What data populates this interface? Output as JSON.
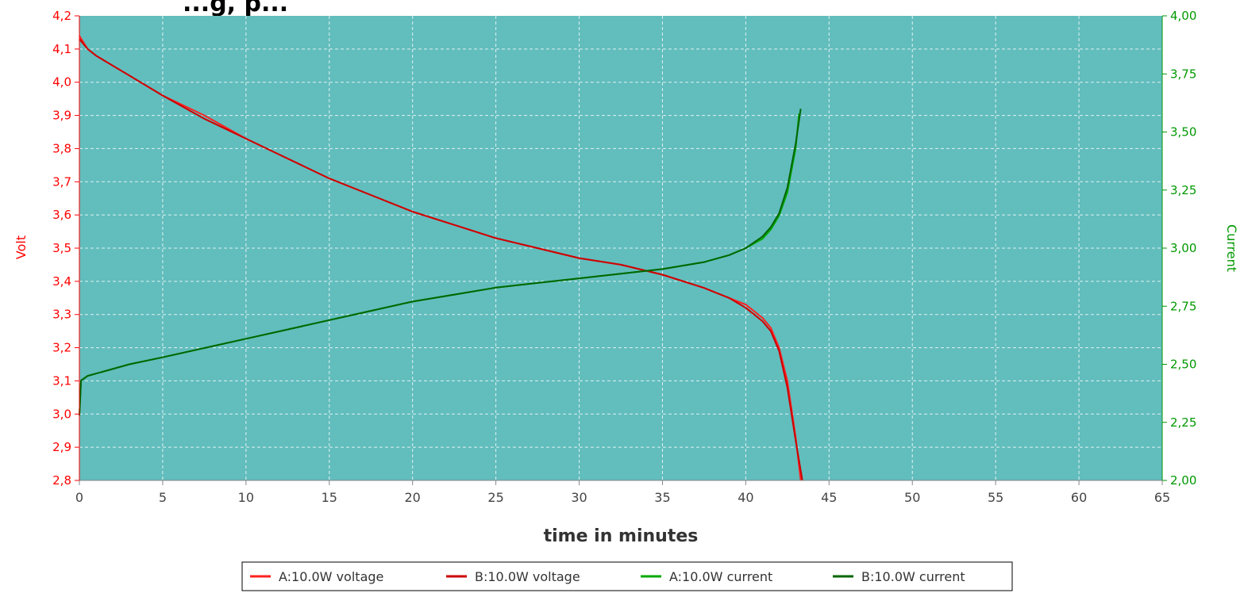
{
  "chart_data": {
    "type": "line",
    "title": "...g, p...",
    "xlabel": "time in minutes",
    "ylabel_left": "Volt",
    "ylabel_right": "Current",
    "xlim": [
      0,
      65
    ],
    "ylim_left": [
      2.8,
      4.2
    ],
    "ylim_right": [
      2.0,
      4.0
    ],
    "x_ticks": [
      "0",
      "5",
      "10",
      "15",
      "20",
      "25",
      "30",
      "35",
      "40",
      "45",
      "50",
      "55",
      "60",
      "65"
    ],
    "y_ticks_left": [
      "2,8",
      "2,9",
      "3,0",
      "3,1",
      "3,2",
      "3,3",
      "3,4",
      "3,5",
      "3,6",
      "3,7",
      "3,8",
      "3,9",
      "4,0",
      "4,1",
      "4,2"
    ],
    "y_ticks_right": [
      "2,00",
      "2,25",
      "2,50",
      "2,75",
      "3,00",
      "3,25",
      "3,50",
      "3,75",
      "4,00"
    ],
    "grid": true,
    "plot_background": "#62bdbd",
    "legend_position": "bottom",
    "series": [
      {
        "name": "A:10.0W voltage",
        "axis": "left",
        "color": "#ff2020",
        "x": [
          0,
          0.5,
          1,
          2,
          3,
          5,
          7.5,
          10,
          12.5,
          15,
          17.5,
          20,
          22.5,
          25,
          27.5,
          30,
          32.5,
          35,
          37.5,
          39,
          40,
          41,
          41.5,
          42,
          42.5,
          43,
          43.3
        ],
        "y": [
          4.14,
          4.1,
          4.08,
          4.05,
          4.02,
          3.96,
          3.9,
          3.83,
          3.77,
          3.71,
          3.66,
          3.61,
          3.57,
          3.53,
          3.5,
          3.47,
          3.45,
          3.42,
          3.38,
          3.35,
          3.33,
          3.29,
          3.26,
          3.2,
          3.1,
          2.93,
          2.8
        ]
      },
      {
        "name": "B:10.0W voltage",
        "axis": "left",
        "color": "#cc0000",
        "x": [
          0,
          0.5,
          1,
          2,
          3,
          5,
          7.5,
          10,
          12.5,
          15,
          17.5,
          20,
          22.5,
          25,
          27.5,
          30,
          32.5,
          35,
          37.5,
          39,
          40,
          41,
          41.5,
          42,
          42.5,
          43,
          43.4
        ],
        "y": [
          4.13,
          4.1,
          4.08,
          4.05,
          4.02,
          3.96,
          3.89,
          3.83,
          3.77,
          3.71,
          3.66,
          3.61,
          3.57,
          3.53,
          3.5,
          3.47,
          3.45,
          3.42,
          3.38,
          3.35,
          3.32,
          3.28,
          3.25,
          3.19,
          3.08,
          2.92,
          2.8
        ]
      },
      {
        "name": "A:10.0W current",
        "axis": "right",
        "color": "#00aa00",
        "x": [
          0,
          0.1,
          0.5,
          1,
          2,
          3,
          5,
          7.5,
          10,
          12.5,
          15,
          17.5,
          20,
          22.5,
          25,
          27.5,
          30,
          32.5,
          35,
          37.5,
          39,
          40,
          41,
          41.5,
          42,
          42.5,
          43,
          43.2
        ],
        "y": [
          2.28,
          2.43,
          2.45,
          2.46,
          2.48,
          2.5,
          2.53,
          2.57,
          2.61,
          2.65,
          2.69,
          2.73,
          2.77,
          2.8,
          2.83,
          2.85,
          2.87,
          2.89,
          2.91,
          2.94,
          2.97,
          3.0,
          3.04,
          3.08,
          3.14,
          3.24,
          3.43,
          3.58
        ]
      },
      {
        "name": "B:10.0W current",
        "axis": "right",
        "color": "#006600",
        "x": [
          0,
          0.1,
          0.5,
          1,
          2,
          3,
          5,
          7.5,
          10,
          12.5,
          15,
          17.5,
          20,
          22.5,
          25,
          27.5,
          30,
          32.5,
          35,
          37.5,
          39,
          40,
          41,
          41.5,
          42,
          42.5,
          43,
          43.3
        ],
        "y": [
          2.28,
          2.43,
          2.45,
          2.46,
          2.48,
          2.5,
          2.53,
          2.57,
          2.61,
          2.65,
          2.69,
          2.73,
          2.77,
          2.8,
          2.83,
          2.85,
          2.87,
          2.89,
          2.91,
          2.94,
          2.97,
          3.0,
          3.05,
          3.09,
          3.15,
          3.26,
          3.45,
          3.6
        ]
      }
    ]
  }
}
